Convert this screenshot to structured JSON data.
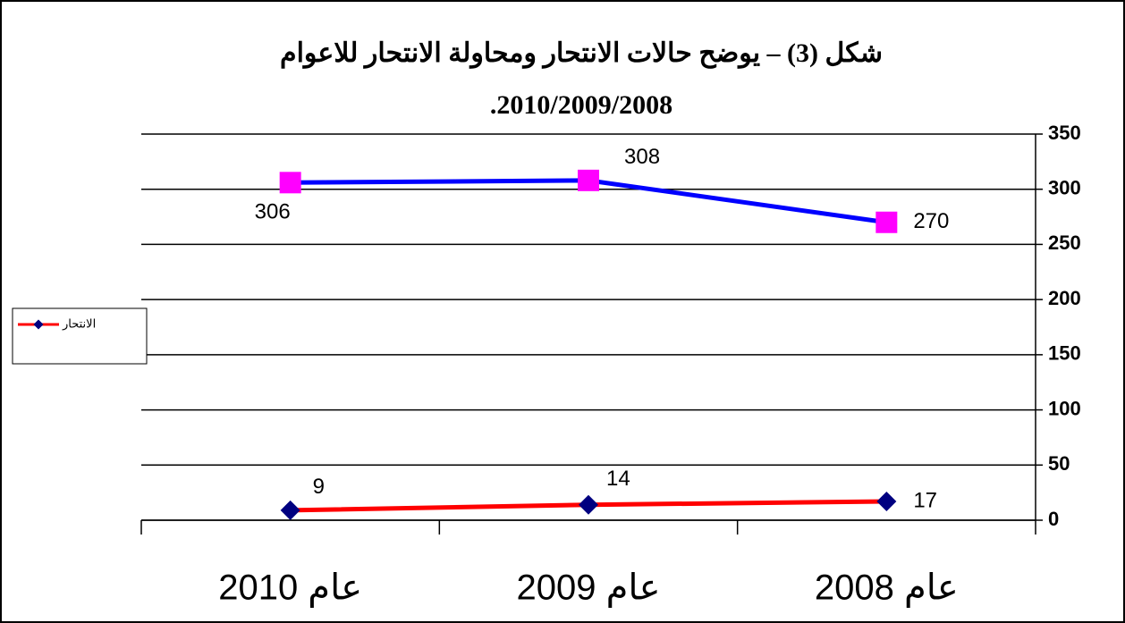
{
  "chart_data": {
    "type": "line",
    "title": [
      "شكل (3) – يوضح حالات الانتحار ومحاولة الانتحار للاعوام",
      "2010/2009/2008."
    ],
    "categories": [
      "عام 2010",
      "عام 2009",
      "عام 2008"
    ],
    "series": [
      {
        "color": "#0000ff",
        "marker_color": "#ff00ff",
        "marker": "square",
        "values": [
          306,
          308,
          270
        ]
      },
      {
        "name": "الانتحار",
        "color": "#ff0000",
        "marker_color": "#000080",
        "marker": "diamond",
        "values": [
          9,
          14,
          17
        ]
      }
    ],
    "ylim": [
      0,
      350
    ],
    "yticks": [
      0,
      50,
      100,
      150,
      200,
      250,
      300,
      350
    ],
    "grid": true,
    "legend": "left",
    "y_axis_side": "right"
  }
}
